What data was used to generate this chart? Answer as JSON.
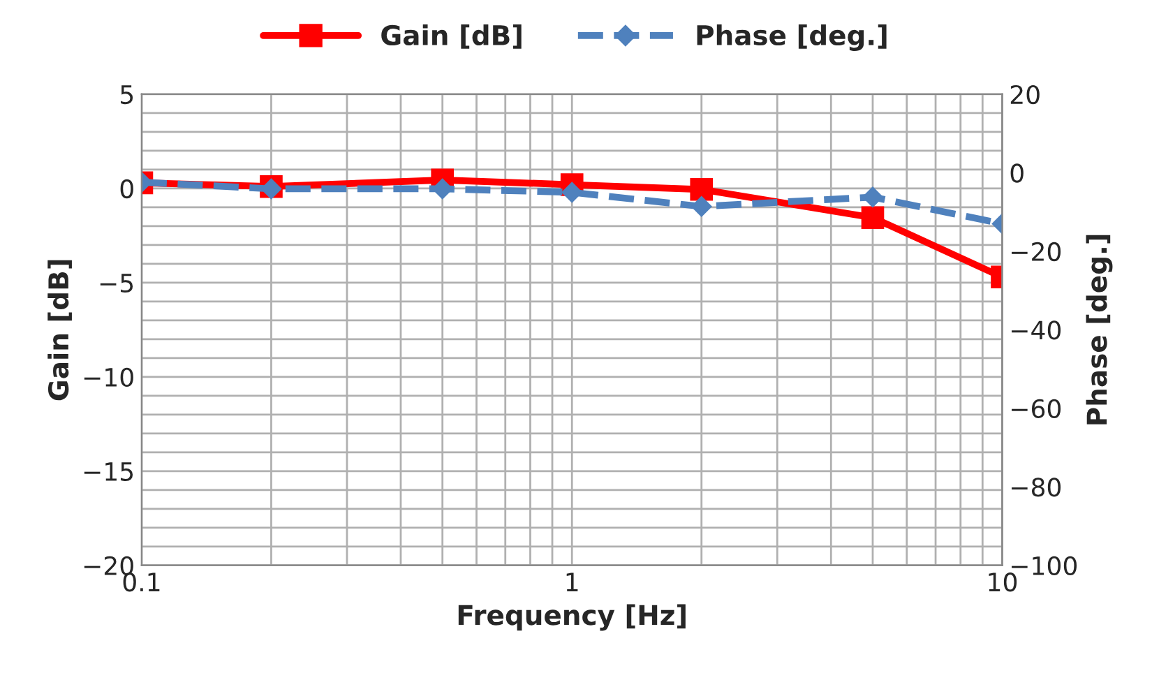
{
  "chart_data": {
    "type": "line",
    "xlabel": "Frequency [Hz]",
    "ylabel": "Gain [dB]",
    "y2label": "Phase [deg.]",
    "x": [
      0.1,
      0.2,
      0.5,
      1,
      2,
      5,
      10
    ],
    "series": [
      {
        "name": "Gain [dB]",
        "color": "#ff0000",
        "marker": "square",
        "line_style": "solid",
        "values": [
          0.3,
          0.1,
          0.45,
          0.2,
          -0.05,
          -1.55,
          -4.7
        ]
      },
      {
        "name": "Phase [deg.]",
        "color": "#4f81bd",
        "marker": "diamond",
        "line_style": "dashed",
        "axis": "y2",
        "values": [
          -2.4,
          -4.1,
          -4.1,
          -5,
          -8.6,
          -6.2,
          -13
        ]
      }
    ],
    "log": "x",
    "xlim": [
      0.1,
      10
    ],
    "xticks": [
      0.1,
      1,
      10
    ],
    "ylim": [
      -20,
      5
    ],
    "yticks": [
      -20,
      -15,
      -10,
      -5,
      0,
      5
    ],
    "y2lim": [
      -100,
      20
    ],
    "y2ticks": [
      -100,
      -80,
      -60,
      -40,
      -20,
      0,
      20
    ],
    "grid": true,
    "legend": "top"
  }
}
